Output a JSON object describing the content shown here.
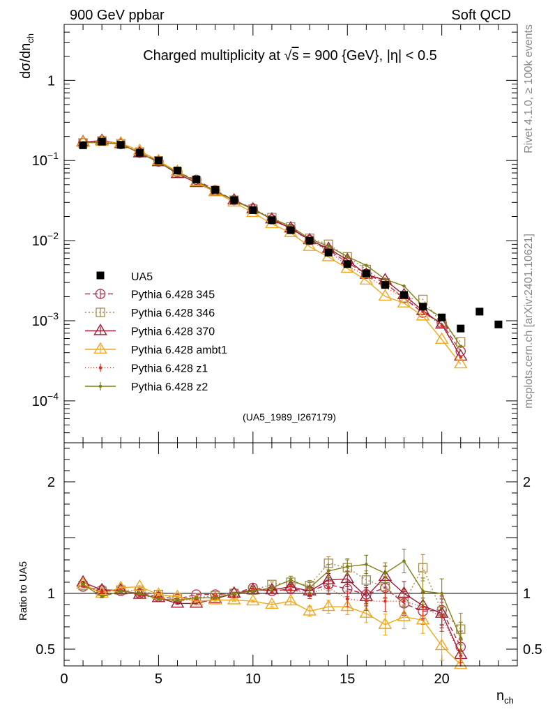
{
  "header": {
    "left_title": "900 GeV ppbar",
    "right_title": "Soft QCD"
  },
  "side_labels": {
    "rivet": "Rivet 4.1.0, ≥ 100k events",
    "mcplots": "mcplots.cern.ch [arXiv:2401.10621]"
  },
  "chart_data": {
    "type": "line",
    "title": "Charged multiplicity at √s = 900 {GeV}, |η| < 0.5",
    "title_parts": {
      "pre": "Charged multiplicity at ",
      "sqrt": "√",
      "s": "s",
      "post": " = 900 {GeV}, |η| < 0.5"
    },
    "analysis_label": "(UA5_1989_I267179)",
    "xlabel": "n",
    "xlabel_sub": "ch",
    "ylabel_main": "dσ/dn",
    "ylabel_main_sub": "ch",
    "ylabel_ratio": "Ratio to UA5",
    "xlim": [
      0,
      24
    ],
    "ylim_main": [
      3e-05,
      5
    ],
    "ylim_ratio": [
      0.35,
      2.35
    ],
    "x_ticks": [
      0,
      5,
      10,
      15,
      20
    ],
    "x_tick_labels": [
      "0",
      "5",
      "10",
      "15",
      "20"
    ],
    "y_ticks_main": [
      {
        "value": 1,
        "base": "1",
        "exp": ""
      },
      {
        "value": 0.1,
        "base": "10",
        "exp": "−1"
      },
      {
        "value": 0.01,
        "base": "10",
        "exp": "−2"
      },
      {
        "value": 0.001,
        "base": "10",
        "exp": "−3"
      },
      {
        "value": 0.0001,
        "base": "10",
        "exp": "−4"
      }
    ],
    "y_ticks_ratio": [
      {
        "value": 2,
        "label": "2"
      },
      {
        "value": 1,
        "label": "1"
      },
      {
        "value": 0.5,
        "label": "0.5"
      }
    ],
    "x": [
      1,
      2,
      3,
      4,
      5,
      6,
      7,
      8,
      9,
      10,
      11,
      12,
      13,
      14,
      15,
      16,
      17,
      18,
      19,
      20,
      21
    ],
    "data": {
      "name": "UA5",
      "x": [
        1,
        2,
        3,
        4,
        5,
        6,
        7,
        8,
        9,
        10,
        11,
        12,
        13,
        14,
        15,
        16,
        17,
        18,
        19,
        20,
        21,
        22,
        23
      ],
      "values": [
        0.155,
        0.172,
        0.157,
        0.125,
        0.1,
        0.075,
        0.058,
        0.043,
        0.032,
        0.024,
        0.018,
        0.0135,
        0.01,
        0.0071,
        0.0051,
        0.0039,
        0.0028,
        0.0021,
        0.0015,
        0.0011,
        0.0008,
        0.0013,
        0.0009
      ]
    },
    "series": [
      {
        "name": "Pythia 6.428 345",
        "color": "#b22a4a",
        "dash": "7,4",
        "marker": "circle",
        "ratio": [
          1.06,
          1.03,
          1.02,
          1.0,
          0.97,
          0.95,
          0.99,
          0.99,
          1.0,
          1.05,
          1.02,
          1.04,
          1.02,
          1.08,
          1.04,
          0.99,
          1.05,
          0.91,
          0.84,
          0.85,
          0.52
        ]
      },
      {
        "name": "Pythia 6.428 346",
        "color": "#a38a4e",
        "dash": "2,3",
        "marker": "square",
        "ratio": [
          1.07,
          1.02,
          1.03,
          1.02,
          0.99,
          0.96,
          0.96,
          0.98,
          1.0,
          1.03,
          1.08,
          1.1,
          1.07,
          1.27,
          1.23,
          1.12,
          1.06,
          0.92,
          1.23,
          0.84,
          0.68
        ]
      },
      {
        "name": "Pythia 6.428 370",
        "color": "#9e1b35",
        "dash": "",
        "marker": "triangle",
        "ratio": [
          1.1,
          1.03,
          1.03,
          0.99,
          0.96,
          0.91,
          0.91,
          0.95,
          1.0,
          1.03,
          1.03,
          1.06,
          1.02,
          1.12,
          1.13,
          0.97,
          1.15,
          1.0,
          0.89,
          0.82,
          0.45
        ]
      },
      {
        "name": "Pythia 6.428 ambt1",
        "color": "#f0a71c",
        "dash": "",
        "marker": "triangle",
        "ratio": [
          1.08,
          1.0,
          1.05,
          1.06,
          0.99,
          0.97,
          0.93,
          0.94,
          0.94,
          0.93,
          0.9,
          0.93,
          0.84,
          0.88,
          0.88,
          0.82,
          0.72,
          0.79,
          0.76,
          0.53,
          0.36
        ]
      },
      {
        "name": "Pythia 6.428 z1",
        "color": "#dd2c1b",
        "dash": "1,3",
        "marker": "dot",
        "ratio": [
          1.07,
          1.01,
          1.03,
          0.98,
          0.96,
          0.93,
          0.95,
          0.97,
          0.98,
          1.03,
          1.02,
          1.03,
          1.0,
          1.05,
          0.95,
          0.93,
          0.93,
          0.93,
          0.88,
          0.79,
          0.44
        ]
      },
      {
        "name": "Pythia 6.428 z2",
        "color": "#7f7f16",
        "dash": "",
        "marker": "dot",
        "ratio": [
          1.08,
          0.97,
          1.02,
          1.0,
          0.95,
          0.94,
          0.96,
          0.96,
          1.0,
          1.02,
          1.05,
          1.12,
          1.05,
          1.2,
          1.24,
          1.26,
          1.18,
          1.29,
          1.02,
          1.0,
          0.6
        ]
      }
    ]
  }
}
